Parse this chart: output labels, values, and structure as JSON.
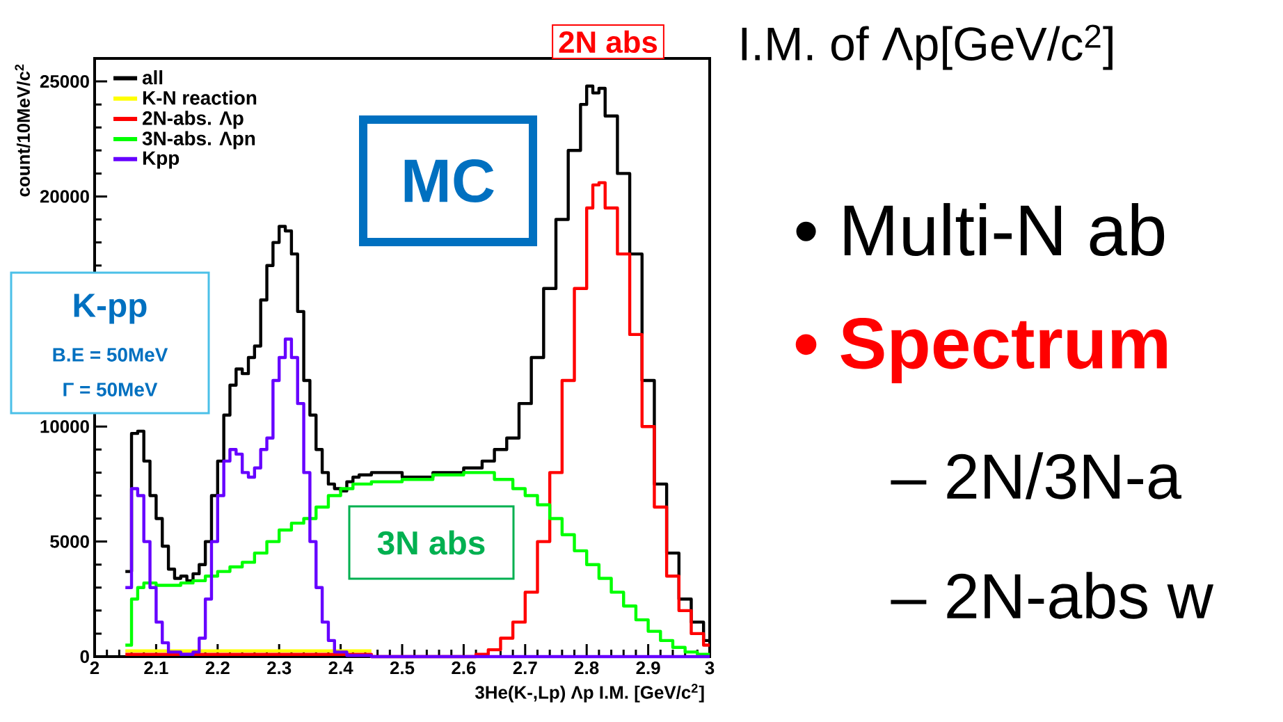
{
  "chart_data": {
    "type": "step",
    "xlabel": "3He(K-,Lp) Λp I.M. [GeV/c$^{2}$]",
    "ylabel": "count/10MeV/c$^{2}$",
    "xlim": [
      2,
      3
    ],
    "ylim": [
      0,
      26000
    ],
    "xticks": [
      2,
      2.1,
      2.2,
      2.3,
      2.4,
      2.5,
      2.6,
      2.7,
      2.8,
      2.9,
      3
    ],
    "yticks": [
      0,
      5000,
      10000,
      {
        "value": 15000,
        "label": null
      },
      20000,
      25000
    ],
    "legend": "top left",
    "series": [
      {
        "name": "all",
        "color": "#000000",
        "x": [
          2.05,
          2.06,
          2.07,
          2.08,
          2.09,
          2.1,
          2.11,
          2.12,
          2.13,
          2.14,
          2.15,
          2.16,
          2.17,
          2.18,
          2.19,
          2.2,
          2.21,
          2.22,
          2.23,
          2.24,
          2.25,
          2.26,
          2.27,
          2.28,
          2.29,
          2.3,
          2.31,
          2.32,
          2.33,
          2.34,
          2.35,
          2.36,
          2.37,
          2.38,
          2.39,
          2.4,
          2.41,
          2.42,
          2.43,
          2.45,
          2.5,
          2.55,
          2.6,
          2.63,
          2.65,
          2.67,
          2.69,
          2.71,
          2.73,
          2.75,
          2.77,
          2.79,
          2.8,
          2.81,
          2.82,
          2.83,
          2.85,
          2.87,
          2.89,
          2.91,
          2.93,
          2.95,
          2.97,
          2.99,
          3.0
        ],
        "values": [
          3700,
          9700,
          9800,
          8500,
          7000,
          6000,
          4800,
          3800,
          3400,
          3500,
          3300,
          3600,
          4000,
          5000,
          7000,
          8500,
          10500,
          11800,
          12500,
          12300,
          13000,
          13500,
          15500,
          17000,
          18000,
          18700,
          18500,
          17500,
          15000,
          12000,
          10500,
          9000,
          8000,
          7500,
          7300,
          7200,
          7600,
          7800,
          7900,
          8000,
          7800,
          8000,
          8200,
          8500,
          9000,
          9500,
          11000,
          13000,
          16000,
          19000,
          22000,
          24000,
          24800,
          24500,
          24700,
          23500,
          21000,
          17500,
          12000,
          7500,
          4500,
          2500,
          1500,
          700,
          700
        ]
      },
      {
        "name": "K-N reaction",
        "color": "#ffff00",
        "x": [
          2.05,
          2.45
        ],
        "values": [
          250,
          250
        ]
      },
      {
        "name": "2N-abs. Λp",
        "color": "#ff0000",
        "x": [
          2.05,
          2.45,
          2.62,
          2.64,
          2.66,
          2.68,
          2.7,
          2.72,
          2.74,
          2.76,
          2.78,
          2.8,
          2.81,
          2.82,
          2.83,
          2.85,
          2.87,
          2.89,
          2.91,
          2.93,
          2.95,
          2.97,
          2.99,
          3.0
        ],
        "values": [
          100,
          0,
          100,
          300,
          800,
          1500,
          2800,
          5000,
          8000,
          12000,
          16000,
          19500,
          20500,
          20600,
          19500,
          17500,
          14000,
          10000,
          6500,
          3500,
          2000,
          1000,
          500,
          500
        ]
      },
      {
        "name": "3N-abs. Λpn",
        "color": "#00ff00",
        "x": [
          2.05,
          2.06,
          2.07,
          2.08,
          2.1,
          2.12,
          2.14,
          2.16,
          2.18,
          2.2,
          2.22,
          2.24,
          2.26,
          2.28,
          2.3,
          2.32,
          2.34,
          2.36,
          2.38,
          2.4,
          2.42,
          2.45,
          2.5,
          2.55,
          2.6,
          2.62,
          2.65,
          2.68,
          2.7,
          2.72,
          2.74,
          2.76,
          2.78,
          2.8,
          2.82,
          2.84,
          2.86,
          2.88,
          2.9,
          2.92,
          2.94,
          2.96,
          2.98,
          3.0
        ],
        "values": [
          500,
          2500,
          3000,
          3200,
          3100,
          3100,
          3200,
          3300,
          3500,
          3700,
          3900,
          4100,
          4500,
          5000,
          5500,
          5800,
          6000,
          6500,
          7000,
          7300,
          7500,
          7600,
          7700,
          7900,
          8000,
          8000,
          7700,
          7300,
          7000,
          6600,
          6000,
          5300,
          4600,
          4000,
          3400,
          2800,
          2200,
          1600,
          1100,
          700,
          400,
          200,
          100,
          100
        ]
      },
      {
        "name": "Kpp",
        "color": "#6600ff",
        "x": [
          2.05,
          2.06,
          2.07,
          2.08,
          2.09,
          2.1,
          2.11,
          2.12,
          2.14,
          2.16,
          2.17,
          2.18,
          2.19,
          2.2,
          2.21,
          2.22,
          2.23,
          2.24,
          2.25,
          2.26,
          2.27,
          2.28,
          2.29,
          2.3,
          2.31,
          2.32,
          2.33,
          2.34,
          2.35,
          2.36,
          2.37,
          2.38,
          2.39,
          2.41,
          2.45,
          3.0
        ],
        "values": [
          3000,
          7300,
          7000,
          5000,
          3000,
          1500,
          600,
          200,
          100,
          200,
          800,
          2500,
          5000,
          7000,
          8500,
          9000,
          8800,
          8000,
          7800,
          8200,
          9000,
          9500,
          12000,
          13000,
          13800,
          13000,
          11000,
          8000,
          5000,
          3000,
          1500,
          700,
          200,
          50,
          0,
          0
        ]
      }
    ],
    "annotations": [
      "2N abs",
      "MC",
      "K-pp",
      "B.E = 50MeV",
      "Γ = 50MeV",
      "3N abs",
      "I.M. of Λp[GeV/c$^{2}$]",
      "• Multi-N ab",
      "• Spectrum",
      "– 2N/3N-a",
      "– 2N-abs w"
    ]
  }
}
